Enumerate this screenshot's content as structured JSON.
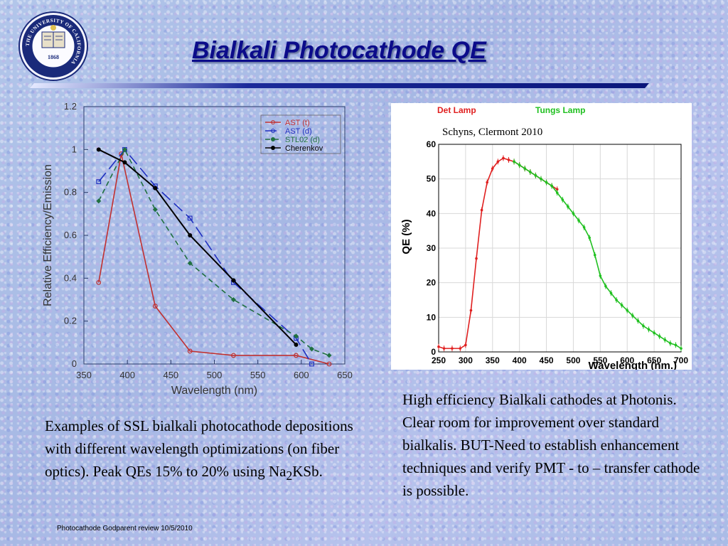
{
  "slide": {
    "title": "Bialkali Photocathode QE",
    "footer": "Photocathode Godparent review  10/5/2010",
    "left_text_parts": [
      "Examples of  SSL bialkali photocathode depositions with different wavelength optimizations (on fiber optics). Peak QEs 15% to 20% using Na",
      "2",
      "KSb."
    ],
    "right_text": "High efficiency Bialkali cathodes at Photonis. Clear room for improvement over standard bialkalis. BUT-Need to establish enhancement techniques and verify PMT - to – transfer cathode is possible.",
    "logo_text": "THE UNIVERSITY OF CALIFORNIA",
    "logo_year": "1868",
    "chart_credit": "Schyns, Clermont 2010"
  },
  "colors": {
    "title": "#0b0b8a",
    "ast_t": "#c03030",
    "ast_d": "#2030c0",
    "stl02": "#207040",
    "cherenkov": "#000000",
    "det_lamp": "#e02020",
    "tungs_lamp": "#20c020"
  },
  "chart_data": [
    {
      "type": "line",
      "xlabel": "Wavelength (nm)",
      "ylabel": "Relative Efficiency/Emission",
      "xlim": [
        350,
        650
      ],
      "ylim": [
        0,
        1.2
      ],
      "xticks": [
        350,
        400,
        450,
        500,
        550,
        600,
        650
      ],
      "yticks": [
        0,
        0.2,
        0.4,
        0.6,
        0.8,
        1,
        1.2
      ],
      "grid": false,
      "legend_position": "top-right",
      "series": [
        {
          "name": "AST (t)",
          "style": "solid",
          "x": [
            367,
            393,
            432,
            472,
            522,
            594,
            632
          ],
          "y": [
            0.38,
            0.98,
            0.27,
            0.06,
            0.04,
            0.04,
            0.0
          ]
        },
        {
          "name": "AST (d)",
          "style": "longdash",
          "x": [
            367,
            397,
            432,
            472,
            522,
            594,
            612
          ],
          "y": [
            0.85,
            1.0,
            0.83,
            0.68,
            0.38,
            0.12,
            0.0
          ]
        },
        {
          "name": "STL02 (d)",
          "style": "dash",
          "x": [
            367,
            397,
            432,
            472,
            522,
            594,
            612,
            632
          ],
          "y": [
            0.76,
            1.0,
            0.72,
            0.47,
            0.3,
            0.13,
            0.07,
            0.04
          ]
        },
        {
          "name": "Cherenkov",
          "style": "solid",
          "x": [
            367,
            397,
            432,
            472,
            522,
            594
          ],
          "y": [
            1.0,
            0.94,
            0.82,
            0.6,
            0.39,
            0.09
          ]
        }
      ]
    },
    {
      "type": "line",
      "xlabel": "Wavelength (nm.)",
      "ylabel": "QE (%)",
      "xlim": [
        250,
        700
      ],
      "ylim": [
        0,
        60
      ],
      "xticks": [
        250,
        300,
        350,
        400,
        450,
        500,
        550,
        600,
        650,
        700
      ],
      "yticks": [
        0,
        10,
        20,
        30,
        40,
        50,
        60
      ],
      "grid": true,
      "legend_position": "top",
      "series": [
        {
          "name": "Det Lamp",
          "x": [
            250,
            260,
            275,
            290,
            300,
            310,
            320,
            330,
            340,
            350,
            360,
            370,
            380,
            390,
            400,
            410,
            420,
            430,
            440,
            450,
            460,
            470
          ],
          "y": [
            1.5,
            1,
            1,
            1,
            2,
            12,
            27,
            41,
            49,
            53,
            55,
            56,
            55.5,
            55,
            54,
            53,
            52,
            51,
            50,
            49,
            48,
            47
          ]
        },
        {
          "name": "Tungs Lamp",
          "x": [
            390,
            400,
            410,
            420,
            430,
            440,
            450,
            460,
            470,
            480,
            490,
            500,
            510,
            520,
            530,
            540,
            550,
            560,
            570,
            580,
            590,
            600,
            610,
            620,
            630,
            640,
            650,
            660,
            670,
            680,
            690,
            700
          ],
          "y": [
            55,
            54,
            53,
            52,
            51,
            50,
            49,
            48,
            46,
            44,
            42,
            40,
            38,
            36,
            33,
            28,
            22,
            19,
            17,
            15,
            13.5,
            12,
            10.5,
            9,
            7.5,
            6.5,
            5.5,
            4.5,
            3.5,
            2.5,
            2,
            1
          ]
        }
      ]
    }
  ]
}
